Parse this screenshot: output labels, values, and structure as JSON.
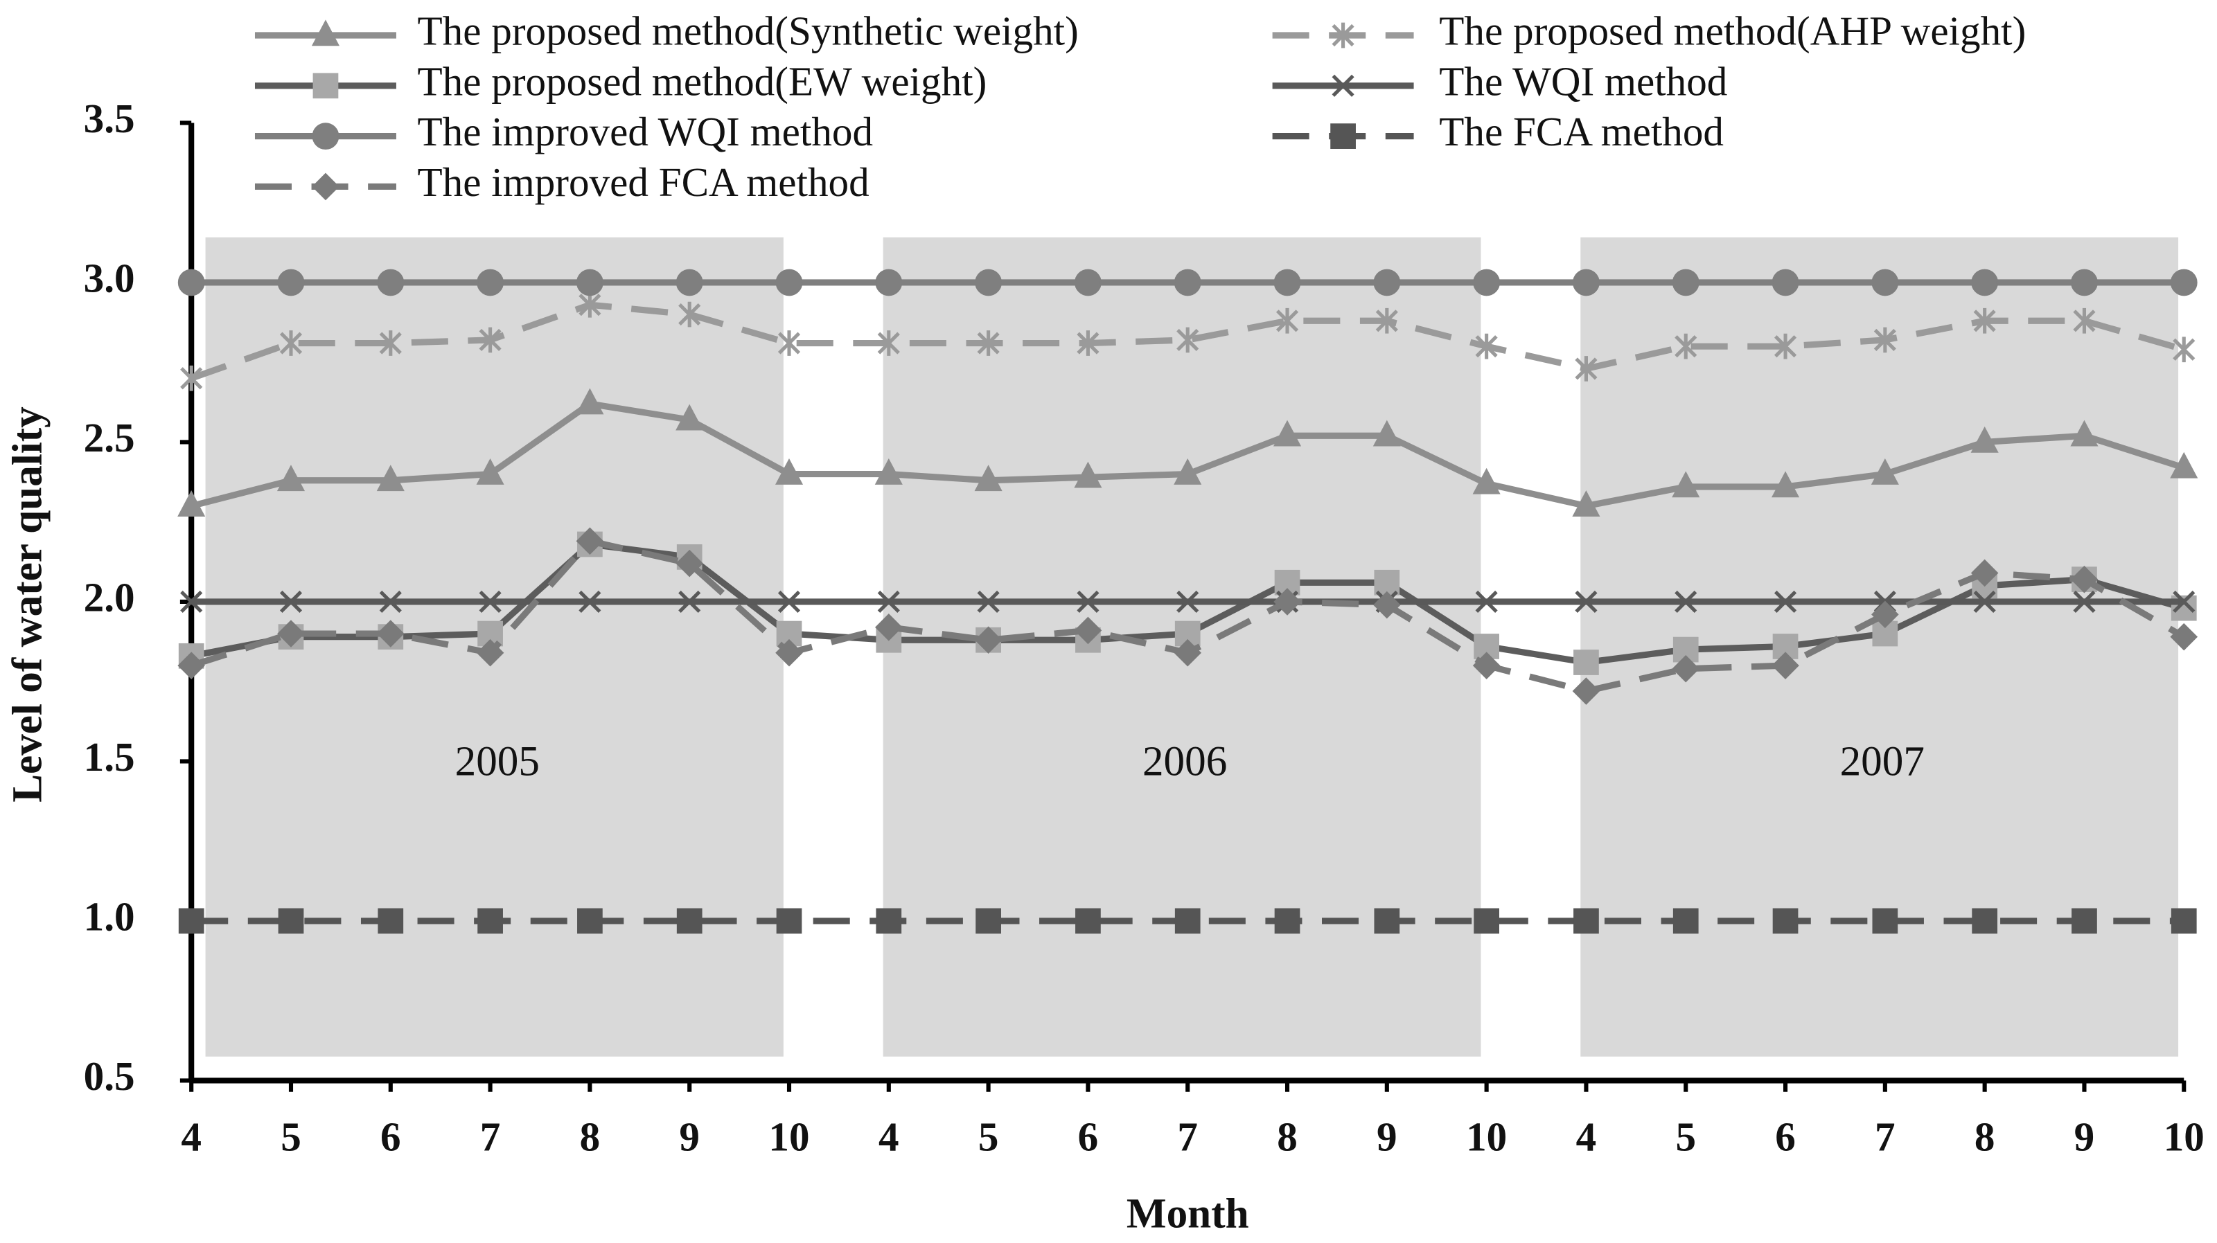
{
  "chart_data": {
    "type": "line",
    "x_label": "Month",
    "y_label": "Level of water quality",
    "categories": [
      "4",
      "5",
      "6",
      "7",
      "8",
      "9",
      "10",
      "4",
      "5",
      "6",
      "7",
      "8",
      "9",
      "10",
      "4",
      "5",
      "6",
      "7",
      "8",
      "9",
      "10"
    ],
    "annotations": [
      {
        "text": "2005"
      },
      {
        "text": "2006"
      },
      {
        "text": "2007"
      }
    ],
    "ylim": [
      0.5,
      3.5
    ],
    "yticks": [
      0.5,
      {
        "value": 1,
        "label": "1.0"
      },
      1.5,
      {
        "value": 2,
        "label": "2.0"
      },
      2.5,
      {
        "value": 3,
        "label": "3.0"
      },
      3.5
    ],
    "legend_position": "top",
    "series": [
      {
        "name": "The proposed method(Synthetic weight)",
        "color": "#8e8e8e",
        "marker": "triangle",
        "dashed": false,
        "values": [
          2.3,
          2.38,
          2.38,
          2.4,
          2.62,
          2.57,
          2.4,
          2.4,
          2.38,
          2.39,
          2.4,
          2.52,
          2.52,
          2.37,
          2.3,
          2.36,
          2.36,
          2.4,
          2.5,
          2.52,
          2.42
        ]
      },
      {
        "name": "The proposed method(AHP weight)",
        "color": "#9a9a9a",
        "marker": "star",
        "dashed": true,
        "values": [
          2.7,
          2.81,
          2.81,
          2.82,
          2.93,
          2.9,
          2.81,
          2.81,
          2.81,
          2.81,
          2.82,
          2.88,
          2.88,
          2.8,
          2.73,
          2.8,
          2.8,
          2.82,
          2.88,
          2.88,
          2.79
        ]
      },
      {
        "name": "The proposed method(EW weight)",
        "color": "#5c5c5c",
        "marker": "square",
        "dashed": false,
        "values": [
          1.83,
          1.89,
          1.89,
          1.9,
          2.18,
          2.14,
          1.9,
          1.88,
          1.88,
          1.88,
          1.9,
          2.06,
          2.06,
          1.86,
          1.81,
          1.85,
          1.86,
          1.9,
          2.05,
          2.07,
          1.98
        ]
      },
      {
        "name": "The WQI method",
        "color": "#595959",
        "marker": "x",
        "dashed": false,
        "values": [
          2,
          2,
          2,
          2,
          2,
          2,
          2,
          2,
          2,
          2,
          2,
          2,
          2,
          2,
          2,
          2,
          2,
          2,
          2,
          2,
          2
        ]
      },
      {
        "name": "The improved WQI method",
        "color": "#7f7f7f",
        "marker": "circle",
        "dashed": false,
        "values": [
          3,
          3,
          3,
          3,
          3,
          3,
          3,
          3,
          3,
          3,
          3,
          3,
          3,
          3,
          3,
          3,
          3,
          3,
          3,
          3,
          3
        ]
      },
      {
        "name": "The FCA method",
        "color": "#555555",
        "marker": "square",
        "dashed": true,
        "values": [
          1,
          1,
          1,
          1,
          1,
          1,
          1,
          1,
          1,
          1,
          1,
          1,
          1,
          1,
          1,
          1,
          1,
          1,
          1,
          1,
          1
        ]
      },
      {
        "name": "The improved FCA method",
        "color": "#7a7a7a",
        "marker": "diamond",
        "dashed": true,
        "values": [
          1.8,
          1.9,
          1.9,
          1.84,
          2.19,
          2.12,
          1.84,
          1.92,
          1.88,
          1.91,
          1.84,
          2.0,
          1.99,
          1.8,
          1.72,
          1.79,
          1.8,
          1.96,
          2.09,
          2.07,
          1.89
        ]
      }
    ]
  }
}
